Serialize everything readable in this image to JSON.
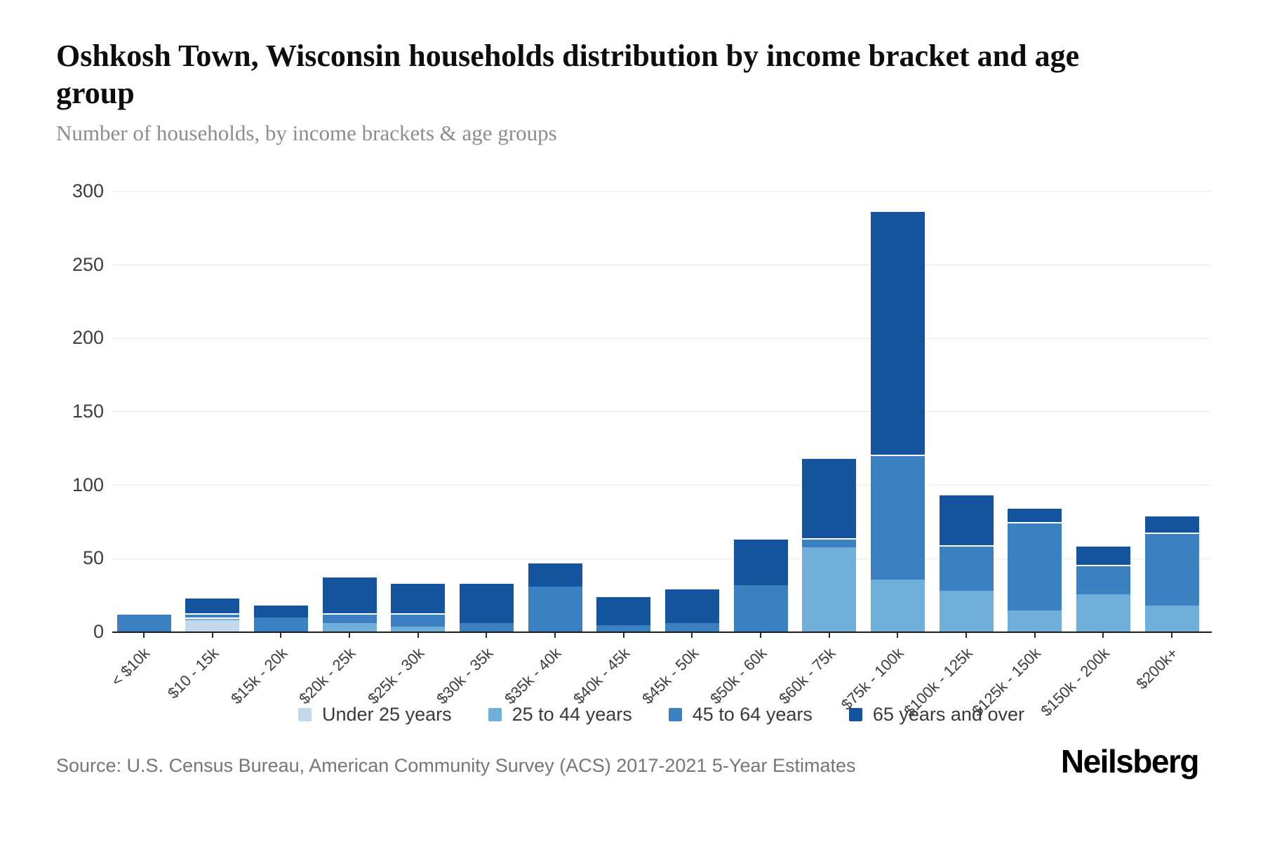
{
  "header": {
    "title": "Oshkosh Town, Wisconsin households distribution by income bracket and age group",
    "subtitle": "Number of households, by income brackets & age groups"
  },
  "source": {
    "text": "Source: U.S. Census Bureau, American Community Survey (ACS) 2017-2021 5-Year Estimates"
  },
  "brand": {
    "logo_text": "Neilsberg"
  },
  "chart_data": {
    "type": "bar",
    "stacked": true,
    "title": "Oshkosh Town, Wisconsin households distribution by income bracket and age group",
    "subtitle": "Number of households, by income brackets & age groups",
    "xlabel": "",
    "ylabel": "Number of households",
    "ylim": [
      0,
      320
    ],
    "yticks": [
      0,
      50,
      100,
      150,
      200,
      250,
      300
    ],
    "grid": true,
    "legend_position": "bottom",
    "categories": [
      "< $10k",
      "$10 - 15k",
      "$15k - 20k",
      "$20k - 25k",
      "$25k - 30k",
      "$30k - 35k",
      "$35k - 40k",
      "$40k - 45k",
      "$45k - 50k",
      "$50k - 60k",
      "$60k - 75k",
      "$75k - 100k",
      "$100k - 125k",
      "$125k - 150k",
      "$150k - 200k",
      "$200k+"
    ],
    "series": [
      {
        "name": "Under 25 years",
        "color": "#c2d9ec",
        "values": [
          0,
          8,
          0,
          0,
          0,
          0,
          0,
          0,
          0,
          0,
          0,
          0,
          0,
          0,
          0,
          0
        ]
      },
      {
        "name": "25 to 44 years",
        "color": "#6fafda",
        "values": [
          0,
          2,
          0,
          6,
          4,
          0,
          0,
          0,
          0,
          0,
          58,
          36,
          28,
          15,
          26,
          18
        ]
      },
      {
        "name": "45 to 64 years",
        "color": "#3b80c0",
        "values": [
          12,
          3,
          10,
          7,
          9,
          6,
          31,
          5,
          6,
          32,
          6,
          85,
          31,
          60,
          20,
          50
        ]
      },
      {
        "name": "65 years and over",
        "color": "#14549f",
        "values": [
          0,
          11,
          9,
          25,
          21,
          28,
          17,
          20,
          24,
          32,
          55,
          166,
          35,
          10,
          13,
          12
        ]
      }
    ]
  }
}
